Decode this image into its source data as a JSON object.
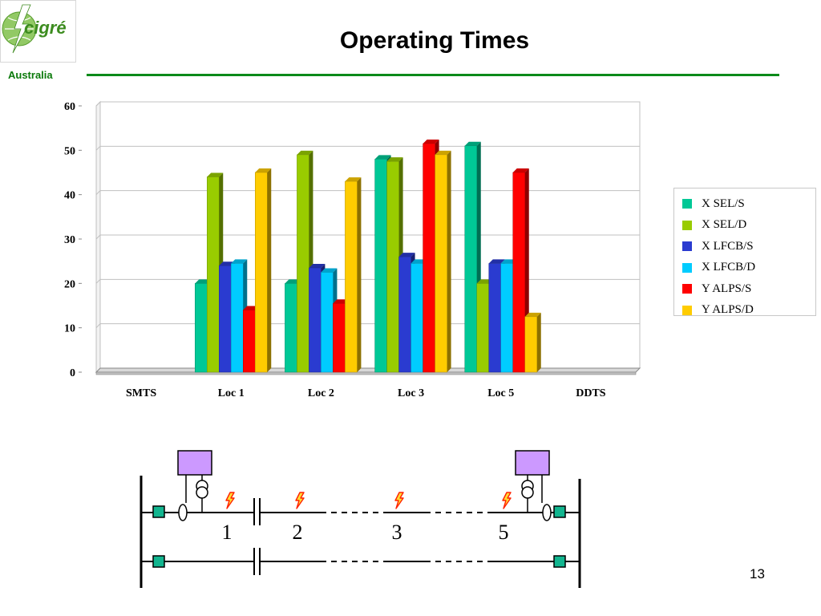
{
  "header": {
    "title": "Operating Times",
    "org_label": "Australia",
    "logo_text": "cigré",
    "brand_color": "#0b8a1a"
  },
  "chart_data": {
    "type": "bar",
    "categories": [
      "SMTS",
      "Loc 1",
      "Loc 2",
      "Loc 3",
      "Loc 5",
      "DDTS"
    ],
    "yticks": [
      "0",
      "10",
      "20",
      "30",
      "40",
      "50",
      "60"
    ],
    "ylim": [
      0,
      60
    ],
    "grid": true,
    "legend_position": "right",
    "three_d": true,
    "series": [
      {
        "name": "X SEL/S",
        "color": "#00c896",
        "values": [
          null,
          20,
          20,
          48,
          51,
          null
        ]
      },
      {
        "name": "X SEL/D",
        "color": "#99cc00",
        "values": [
          null,
          44,
          49,
          47.5,
          20,
          null
        ]
      },
      {
        "name": "X LFCB/S",
        "color": "#2a3bd0",
        "values": [
          null,
          24,
          23.5,
          26,
          24.5,
          null
        ]
      },
      {
        "name": "X LFCB/D",
        "color": "#00ccff",
        "values": [
          null,
          24.5,
          22.5,
          24.5,
          24.5,
          null
        ]
      },
      {
        "name": "Y ALPS/S",
        "color": "#ff0000",
        "values": [
          null,
          14,
          15.5,
          51.5,
          45,
          null
        ]
      },
      {
        "name": "Y ALPS/D",
        "color": "#ffcc00",
        "values": [
          null,
          45,
          43,
          49,
          12.5,
          null
        ]
      }
    ]
  },
  "diagram": {
    "location_labels": [
      "1",
      "2",
      "3",
      "5"
    ],
    "relay_color": "#cc99ff",
    "node_color": "#12b58f"
  },
  "footer": {
    "page_number": "13"
  }
}
